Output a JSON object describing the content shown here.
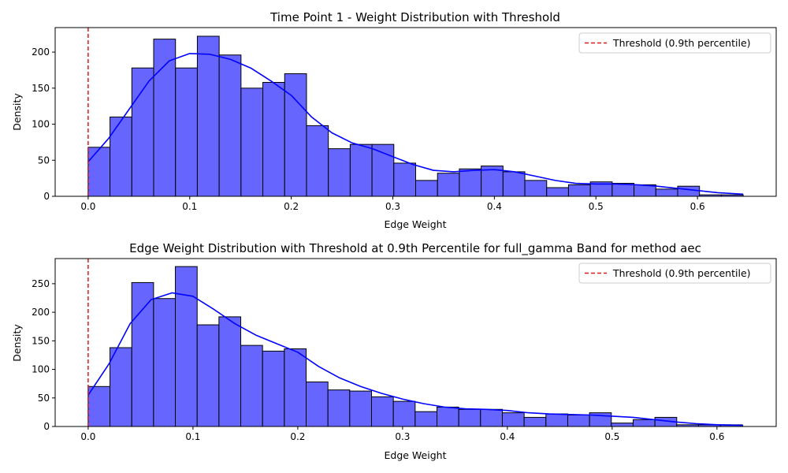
{
  "chart_data": [
    {
      "type": "histogram",
      "title": "Time Point 1 - Weight Distribution with Threshold",
      "xlabel": "Edge Weight",
      "ylabel": "Density",
      "xlim": [
        -0.0325,
        0.6775
      ],
      "ylim": [
        0,
        234
      ],
      "xticks": [
        0.0,
        0.1,
        0.2,
        0.3,
        0.4,
        0.5,
        0.6
      ],
      "xtick_labels": [
        "0.0",
        "0.1",
        "0.2",
        "0.3",
        "0.4",
        "0.5",
        "0.6"
      ],
      "yticks": [
        0,
        50,
        100,
        150,
        200
      ],
      "ytick_labels": [
        "0",
        "50",
        "100",
        "150",
        "200"
      ],
      "bin_start": 0.0,
      "bin_width": 0.0215,
      "values": [
        68,
        110,
        178,
        218,
        178,
        222,
        196,
        150,
        158,
        170,
        98,
        66,
        72,
        72,
        46,
        22,
        32,
        38,
        42,
        34,
        22,
        12,
        16,
        20,
        18,
        16,
        10,
        14,
        2,
        2
      ],
      "kde": {
        "x": [
          0.0,
          0.02,
          0.04,
          0.06,
          0.08,
          0.1,
          0.12,
          0.14,
          0.16,
          0.18,
          0.2,
          0.22,
          0.24,
          0.26,
          0.28,
          0.3,
          0.32,
          0.34,
          0.36,
          0.38,
          0.4,
          0.42,
          0.44,
          0.46,
          0.48,
          0.5,
          0.52,
          0.54,
          0.56,
          0.58,
          0.6,
          0.62,
          0.645
        ],
        "y": [
          48,
          80,
          120,
          160,
          188,
          198,
          197,
          190,
          178,
          160,
          140,
          110,
          88,
          74,
          66,
          55,
          44,
          36,
          34,
          36,
          37,
          34,
          28,
          22,
          18,
          17,
          17,
          16,
          14,
          11,
          8,
          5,
          3
        ]
      },
      "threshold": 0.0,
      "legend": {
        "label": "Threshold (0.9th percentile)",
        "position": "upper right"
      },
      "colors": {
        "bars": "#6666ff",
        "edge": "#000000",
        "kde": "#0000ff",
        "threshold": "#e0191b"
      },
      "grid": false
    },
    {
      "type": "histogram",
      "title": "Edge Weight Distribution with Threshold at 0.9th Percentile for full_gamma Band for method aec",
      "xlabel": "Edge Weight",
      "ylabel": "Density",
      "xlim": [
        -0.0315,
        0.6565
      ],
      "ylim": [
        0,
        294
      ],
      "xticks": [
        0.0,
        0.1,
        0.2,
        0.3,
        0.4,
        0.5,
        0.6
      ],
      "xtick_labels": [
        "0.0",
        "0.1",
        "0.2",
        "0.3",
        "0.4",
        "0.5",
        "0.6"
      ],
      "yticks": [
        0,
        50,
        100,
        150,
        200,
        250
      ],
      "ytick_labels": [
        "0",
        "50",
        "100",
        "150",
        "200",
        "250"
      ],
      "bin_start": 0.0,
      "bin_width": 0.0208,
      "values": [
        70,
        138,
        252,
        224,
        280,
        178,
        192,
        142,
        132,
        136,
        78,
        64,
        62,
        52,
        44,
        26,
        34,
        30,
        30,
        24,
        16,
        22,
        20,
        24,
        6,
        12,
        16,
        3,
        3,
        3
      ],
      "kde": {
        "x": [
          0.0,
          0.02,
          0.04,
          0.06,
          0.08,
          0.1,
          0.12,
          0.14,
          0.16,
          0.18,
          0.2,
          0.22,
          0.24,
          0.26,
          0.28,
          0.3,
          0.32,
          0.34,
          0.36,
          0.38,
          0.4,
          0.42,
          0.44,
          0.46,
          0.48,
          0.5,
          0.52,
          0.54,
          0.56,
          0.58,
          0.6,
          0.625
        ],
        "y": [
          55,
          110,
          180,
          222,
          234,
          228,
          205,
          180,
          160,
          145,
          130,
          105,
          85,
          70,
          58,
          48,
          40,
          34,
          31,
          30,
          28,
          24,
          22,
          21,
          20,
          18,
          16,
          12,
          8,
          5,
          3,
          2
        ]
      },
      "threshold": 0.0,
      "legend": {
        "label": "Threshold (0.9th percentile)",
        "position": "upper right"
      },
      "colors": {
        "bars": "#6666ff",
        "edge": "#000000",
        "kde": "#0000ff",
        "threshold": "#e0191b"
      },
      "grid": false
    }
  ]
}
